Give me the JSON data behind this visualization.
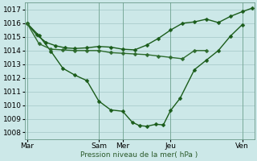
{
  "background_color": "#cce8e8",
  "grid_color": "#aacccc",
  "line_color_dark": "#1a5c1a",
  "line_color_mid": "#2d6b2d",
  "ylabel": "Pression niveau de la mer( hPa )",
  "ylim": [
    1007.5,
    1017.5
  ],
  "yticks": [
    1008,
    1009,
    1010,
    1011,
    1012,
    1013,
    1014,
    1015,
    1016,
    1017
  ],
  "xtick_labels": [
    "Mar",
    "",
    "Sam",
    "Mer",
    "",
    "Jeu",
    "",
    "Ven"
  ],
  "xtick_positions": [
    0,
    2,
    3,
    4,
    5,
    6,
    7.5,
    9
  ],
  "day_vlines": [
    0,
    3,
    4,
    6,
    9
  ],
  "xlim": [
    -0.1,
    9.5
  ],
  "line1_x": [
    0,
    0.4,
    0.8,
    1.2,
    1.6,
    2.0,
    2.5,
    3.0,
    3.5,
    4.0,
    4.5,
    5.0,
    5.5,
    6.0,
    6.5,
    7.0,
    7.5,
    8.0,
    8.5,
    9.0,
    9.4
  ],
  "line1_y": [
    1016.0,
    1015.15,
    1014.6,
    1014.35,
    1014.2,
    1014.15,
    1014.2,
    1014.3,
    1014.25,
    1014.1,
    1014.05,
    1014.4,
    1014.9,
    1015.5,
    1016.0,
    1016.1,
    1016.3,
    1016.05,
    1016.5,
    1016.85,
    1017.1
  ],
  "line2_x": [
    0,
    0.5,
    1.0,
    1.5,
    2.0,
    2.5,
    3.0,
    3.5,
    4.0,
    4.4,
    4.7,
    5.0,
    5.4,
    5.7,
    6.0,
    6.4,
    7.0,
    7.5,
    8.0,
    8.5,
    9.0
  ],
  "line2_y": [
    1016.0,
    1015.1,
    1013.95,
    1012.7,
    1012.2,
    1011.8,
    1010.3,
    1009.65,
    1009.55,
    1008.75,
    1008.5,
    1008.45,
    1008.6,
    1008.55,
    1009.6,
    1010.5,
    1012.6,
    1013.3,
    1014.0,
    1015.05,
    1015.9
  ],
  "line3_x": [
    0,
    0.5,
    1.0,
    1.5,
    2.0,
    2.5,
    3.0,
    3.5,
    4.0,
    4.5,
    5.0,
    5.5,
    6.0,
    6.5,
    7.0,
    7.5
  ],
  "line3_y": [
    1016.0,
    1014.5,
    1014.1,
    1014.05,
    1014.0,
    1014.0,
    1014.0,
    1013.85,
    1013.8,
    1013.75,
    1013.7,
    1013.6,
    1013.5,
    1013.4,
    1014.0,
    1014.0
  ],
  "marker": "D",
  "markersize": 2.5,
  "linewidth": 1.0,
  "tick_fontsize": 6.5
}
